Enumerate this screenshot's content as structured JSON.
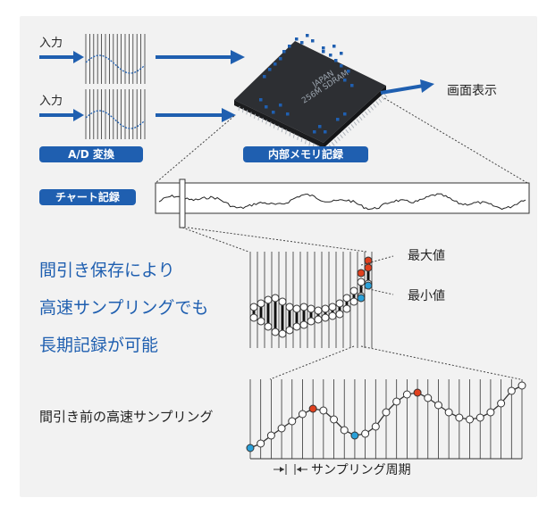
{
  "labels": {
    "input_1": "入力",
    "input_2": "入力",
    "ad_conversion": "A/D 変換",
    "internal_memory": "内部メモリ記録",
    "screen_display": "画面表示",
    "chart_record": "チャート記録",
    "max_value": "最大値",
    "min_value": "最小値",
    "message_line_1": "間引き保存により",
    "message_line_2": "高速サンプリングでも",
    "message_line_3": "長期記録が可能",
    "before_decimation": "間引き前の高速サンプリング",
    "sampling_period": "サンプリング周期"
  },
  "chip_text": {
    "line_1": "JAPAN",
    "line_2": "256M SDRAM"
  },
  "colors": {
    "accent_blue": "#1f5fb0",
    "pill_blue": "#1f5fb0",
    "max_red": "#e0401e",
    "min_cyan": "#2aa0d8",
    "panel_bg": "#f2f2f2"
  },
  "icons": {
    "arrow": "right-arrow-icon",
    "chip": "sdram-chip-icon"
  }
}
